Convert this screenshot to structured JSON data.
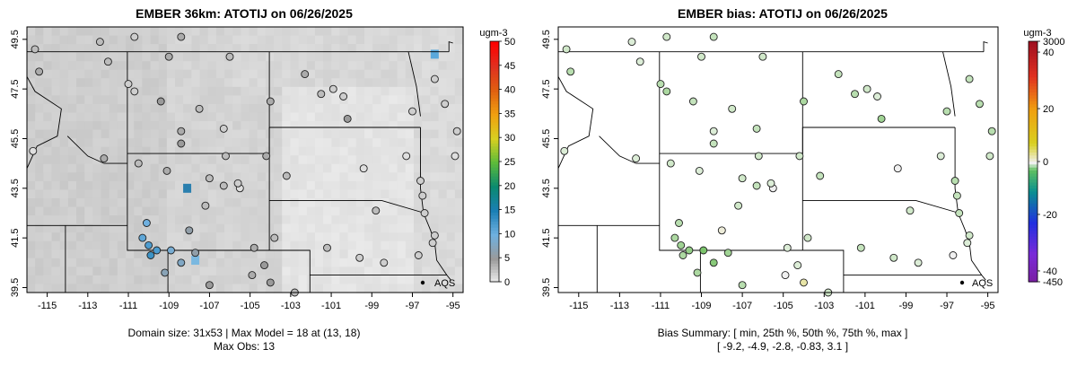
{
  "charts": [
    {
      "title": "EMBER 36km: ATOTIJ on 06/26/2025",
      "colorbar_label": "ugm-3",
      "colorbar_ticks": [
        "50",
        "45",
        "40",
        "35",
        "30",
        "25",
        "20",
        "15",
        "10",
        "5",
        "0"
      ],
      "footer_lines": [
        "Domain size: 31x53 | Max Model = 18 at (13, 18)",
        "Max Obs: 13"
      ]
    },
    {
      "title": "EMBER bias: ATOTIJ on 06/26/2025",
      "colorbar_label": "ugm-3",
      "colorbar_ticks": [
        "3000",
        "40",
        "20",
        "0",
        "-20",
        "-40",
        "-450"
      ],
      "footer_lines": [
        "Bias Summary: [ min, 25th %, 50th %, 75th %, max ]",
        "[ -9.2,   -4.9,   -2.8,   -0.83,   3.1 ]"
      ]
    }
  ],
  "station_label": "AQS",
  "chart_data": [
    {
      "type": "heatmap",
      "title": "EMBER 36km: ATOTIJ on 06/26/2025",
      "xlim": [
        -116,
        -94.5
      ],
      "ylim": [
        39.3,
        50.0
      ],
      "x_ticks": [
        -115,
        -113,
        -111,
        -109,
        -107,
        -105,
        -103,
        -101,
        -99,
        -97,
        -95
      ],
      "y_ticks": [
        39.5,
        41.5,
        43.5,
        45.5,
        47.5,
        49.5
      ],
      "colorbar": {
        "label": "ugm-3",
        "range": [
          0,
          50
        ],
        "ticks": [
          0,
          5,
          10,
          15,
          20,
          25,
          30,
          35,
          40,
          45,
          50
        ]
      },
      "annotation": "AQS",
      "stations": [
        {
          "lon": -115.6,
          "lat": 49.1,
          "value": 3
        },
        {
          "lon": -115.4,
          "lat": 48.2,
          "value": 4
        },
        {
          "lon": -112.4,
          "lat": 49.4,
          "value": 3
        },
        {
          "lon": -110.7,
          "lat": 49.6,
          "value": 2
        },
        {
          "lon": -108.4,
          "lat": 49.6,
          "value": 4
        },
        {
          "lon": -112.0,
          "lat": 48.6,
          "value": 3
        },
        {
          "lon": -111.0,
          "lat": 47.7,
          "value": 2
        },
        {
          "lon": -110.7,
          "lat": 47.4,
          "value": 2
        },
        {
          "lon": -109.4,
          "lat": 47.0,
          "value": 5
        },
        {
          "lon": -109.0,
          "lat": 48.8,
          "value": 4
        },
        {
          "lon": -106.0,
          "lat": 48.8,
          "value": 3
        },
        {
          "lon": -104.0,
          "lat": 47.0,
          "value": 4
        },
        {
          "lon": -107.5,
          "lat": 46.7,
          "value": 3
        },
        {
          "lon": -108.4,
          "lat": 45.8,
          "value": 4
        },
        {
          "lon": -106.3,
          "lat": 45.9,
          "value": 2
        },
        {
          "lon": -110.5,
          "lat": 44.5,
          "value": 3
        },
        {
          "lon": -112.2,
          "lat": 44.7,
          "value": 4
        },
        {
          "lon": -115.7,
          "lat": 45.0,
          "value": 1
        },
        {
          "lon": -102.3,
          "lat": 48.1,
          "value": 4
        },
        {
          "lon": -101.5,
          "lat": 47.3,
          "value": 3
        },
        {
          "lon": -100.9,
          "lat": 47.5,
          "value": 2
        },
        {
          "lon": -100.4,
          "lat": 47.2,
          "value": 2
        },
        {
          "lon": -100.2,
          "lat": 46.3,
          "value": 5
        },
        {
          "lon": -97.0,
          "lat": 46.6,
          "value": 2
        },
        {
          "lon": -95.4,
          "lat": 46.9,
          "value": 2
        },
        {
          "lon": -95.9,
          "lat": 47.9,
          "value": 2
        },
        {
          "lon": -94.8,
          "lat": 45.8,
          "value": 2
        },
        {
          "lon": -94.9,
          "lat": 44.8,
          "value": 1
        },
        {
          "lon": -96.6,
          "lat": 43.8,
          "value": 2
        },
        {
          "lon": -96.5,
          "lat": 43.2,
          "value": 2
        },
        {
          "lon": -97.3,
          "lat": 44.8,
          "value": 1
        },
        {
          "lon": -99.4,
          "lat": 44.3,
          "value": 1
        },
        {
          "lon": -103.2,
          "lat": 44.0,
          "value": 3
        },
        {
          "lon": -104.2,
          "lat": 44.8,
          "value": 4
        },
        {
          "lon": -106.2,
          "lat": 44.8,
          "value": 3
        },
        {
          "lon": -108.4,
          "lat": 45.3,
          "value": 5
        },
        {
          "lon": -107.0,
          "lat": 43.9,
          "value": 3
        },
        {
          "lon": -105.5,
          "lat": 43.5,
          "value": 1
        },
        {
          "lon": -105.6,
          "lat": 43.7,
          "value": 2
        },
        {
          "lon": -106.3,
          "lat": 43.6,
          "value": 3
        },
        {
          "lon": -107.2,
          "lat": 42.8,
          "value": 3
        },
        {
          "lon": -109.1,
          "lat": 44.2,
          "value": 4
        },
        {
          "lon": -108.0,
          "lat": 41.8,
          "value": 6
        },
        {
          "lon": -110.1,
          "lat": 42.1,
          "value": 10
        },
        {
          "lon": -110.3,
          "lat": 41.5,
          "value": 11
        },
        {
          "lon": -110.0,
          "lat": 41.2,
          "value": 12
        },
        {
          "lon": -109.9,
          "lat": 40.8,
          "value": 13
        },
        {
          "lon": -109.6,
          "lat": 41.0,
          "value": 12
        },
        {
          "lon": -108.9,
          "lat": 41.0,
          "value": 9
        },
        {
          "lon": -108.4,
          "lat": 40.5,
          "value": 8
        },
        {
          "lon": -107.7,
          "lat": 40.9,
          "value": 6
        },
        {
          "lon": -109.2,
          "lat": 40.1,
          "value": 7
        },
        {
          "lon": -107.0,
          "lat": 39.6,
          "value": 5
        },
        {
          "lon": -104.8,
          "lat": 41.1,
          "value": 4
        },
        {
          "lon": -103.8,
          "lat": 41.5,
          "value": 3
        },
        {
          "lon": -104.3,
          "lat": 40.4,
          "value": 5
        },
        {
          "lon": -104.9,
          "lat": 40.0,
          "value": 4
        },
        {
          "lon": -104.0,
          "lat": 39.7,
          "value": 5
        },
        {
          "lon": -101.2,
          "lat": 41.1,
          "value": 3
        },
        {
          "lon": -99.6,
          "lat": 40.7,
          "value": 2
        },
        {
          "lon": -98.4,
          "lat": 40.5,
          "value": 2
        },
        {
          "lon": -96.7,
          "lat": 40.8,
          "value": 2
        },
        {
          "lon": -96.0,
          "lat": 41.3,
          "value": 2
        },
        {
          "lon": -95.9,
          "lat": 41.6,
          "value": 2
        },
        {
          "lon": -96.4,
          "lat": 42.5,
          "value": 2
        },
        {
          "lon": -98.8,
          "lat": 42.6,
          "value": 3
        },
        {
          "lon": -102.8,
          "lat": 39.3,
          "value": 3
        }
      ]
    },
    {
      "type": "scatter",
      "title": "EMBER bias: ATOTIJ on 06/26/2025",
      "xlim": [
        -116,
        -94.5
      ],
      "ylim": [
        39.3,
        50.0
      ],
      "x_ticks": [
        -115,
        -113,
        -111,
        -109,
        -107,
        -105,
        -103,
        -101,
        -99,
        -97,
        -95
      ],
      "y_ticks": [
        39.5,
        41.5,
        43.5,
        45.5,
        47.5,
        49.5
      ],
      "colorbar": {
        "label": "ugm-3",
        "ticks": [
          3000,
          40,
          20,
          0,
          -20,
          -40,
          -450
        ]
      },
      "annotation": "AQS",
      "bias_summary": {
        "min": -9.2,
        "p25": -4.9,
        "p50": -2.8,
        "p75": -0.83,
        "max": 3.1
      },
      "stations": [
        {
          "lon": -115.6,
          "lat": 49.1,
          "value": -2
        },
        {
          "lon": -115.4,
          "lat": 48.2,
          "value": -4
        },
        {
          "lon": -112.4,
          "lat": 49.4,
          "value": -1
        },
        {
          "lon": -110.7,
          "lat": 49.6,
          "value": -2
        },
        {
          "lon": -108.4,
          "lat": 49.6,
          "value": -3
        },
        {
          "lon": -112.0,
          "lat": 48.6,
          "value": -1
        },
        {
          "lon": -111.0,
          "lat": 47.7,
          "value": -4
        },
        {
          "lon": -110.7,
          "lat": 47.4,
          "value": -5
        },
        {
          "lon": -109.4,
          "lat": 47.0,
          "value": -3
        },
        {
          "lon": -109.0,
          "lat": 48.8,
          "value": -2
        },
        {
          "lon": -106.0,
          "lat": 48.8,
          "value": -2
        },
        {
          "lon": -104.0,
          "lat": 47.0,
          "value": -5
        },
        {
          "lon": -107.5,
          "lat": 46.7,
          "value": -2
        },
        {
          "lon": -108.4,
          "lat": 45.8,
          "value": -1
        },
        {
          "lon": -106.3,
          "lat": 45.9,
          "value": -3
        },
        {
          "lon": -110.5,
          "lat": 44.5,
          "value": -2
        },
        {
          "lon": -112.2,
          "lat": 44.7,
          "value": -1
        },
        {
          "lon": -115.7,
          "lat": 45.0,
          "value": -1
        },
        {
          "lon": -102.3,
          "lat": 48.1,
          "value": -3
        },
        {
          "lon": -101.5,
          "lat": 47.3,
          "value": -4
        },
        {
          "lon": -100.9,
          "lat": 47.5,
          "value": -2
        },
        {
          "lon": -100.4,
          "lat": 47.2,
          "value": -1
        },
        {
          "lon": -100.2,
          "lat": 46.3,
          "value": -6
        },
        {
          "lon": -97.0,
          "lat": 46.6,
          "value": -4
        },
        {
          "lon": -95.4,
          "lat": 46.9,
          "value": -4
        },
        {
          "lon": -95.9,
          "lat": 47.9,
          "value": -3
        },
        {
          "lon": -94.8,
          "lat": 45.8,
          "value": -4
        },
        {
          "lon": -94.9,
          "lat": 44.8,
          "value": -2
        },
        {
          "lon": -96.6,
          "lat": 43.8,
          "value": -4
        },
        {
          "lon": -96.5,
          "lat": 43.2,
          "value": -3
        },
        {
          "lon": -97.3,
          "lat": 44.8,
          "value": -1
        },
        {
          "lon": -99.4,
          "lat": 44.3,
          "value": 0
        },
        {
          "lon": -103.2,
          "lat": 44.0,
          "value": -3
        },
        {
          "lon": -104.2,
          "lat": 44.8,
          "value": -2
        },
        {
          "lon": -106.2,
          "lat": 44.8,
          "value": -2
        },
        {
          "lon": -108.4,
          "lat": 45.3,
          "value": -3
        },
        {
          "lon": -107.0,
          "lat": 43.9,
          "value": -2
        },
        {
          "lon": -105.5,
          "lat": 43.5,
          "value": 0
        },
        {
          "lon": -105.6,
          "lat": 43.7,
          "value": -1
        },
        {
          "lon": -106.3,
          "lat": 43.6,
          "value": -3
        },
        {
          "lon": -107.2,
          "lat": 42.8,
          "value": -2
        },
        {
          "lon": -109.1,
          "lat": 44.2,
          "value": -1
        },
        {
          "lon": -108.0,
          "lat": 41.8,
          "value": 1
        },
        {
          "lon": -110.1,
          "lat": 42.1,
          "value": -4
        },
        {
          "lon": -110.3,
          "lat": 41.5,
          "value": -5
        },
        {
          "lon": -110.0,
          "lat": 41.2,
          "value": -6
        },
        {
          "lon": -109.9,
          "lat": 40.8,
          "value": -5
        },
        {
          "lon": -109.6,
          "lat": 41.0,
          "value": -7
        },
        {
          "lon": -108.9,
          "lat": 41.0,
          "value": -9.2
        },
        {
          "lon": -108.4,
          "lat": 40.5,
          "value": -8
        },
        {
          "lon": -107.7,
          "lat": 40.9,
          "value": -6
        },
        {
          "lon": -109.2,
          "lat": 40.1,
          "value": -5
        },
        {
          "lon": -107.0,
          "lat": 39.6,
          "value": -4
        },
        {
          "lon": -104.8,
          "lat": 41.1,
          "value": -1
        },
        {
          "lon": -103.8,
          "lat": 41.5,
          "value": -2
        },
        {
          "lon": -104.3,
          "lat": 40.4,
          "value": -1
        },
        {
          "lon": -104.9,
          "lat": 40.0,
          "value": 0
        },
        {
          "lon": -104.0,
          "lat": 39.7,
          "value": 3.1
        },
        {
          "lon": -101.2,
          "lat": 41.1,
          "value": -3
        },
        {
          "lon": -99.6,
          "lat": 40.7,
          "value": -2
        },
        {
          "lon": -98.4,
          "lat": 40.5,
          "value": -1
        },
        {
          "lon": -96.7,
          "lat": 40.8,
          "value": 0
        },
        {
          "lon": -96.0,
          "lat": 41.3,
          "value": -1
        },
        {
          "lon": -95.9,
          "lat": 41.6,
          "value": -2
        },
        {
          "lon": -96.4,
          "lat": 42.5,
          "value": -3
        },
        {
          "lon": -98.8,
          "lat": 42.6,
          "value": -2
        },
        {
          "lon": -102.8,
          "lat": 39.3,
          "value": -2
        }
      ]
    }
  ]
}
